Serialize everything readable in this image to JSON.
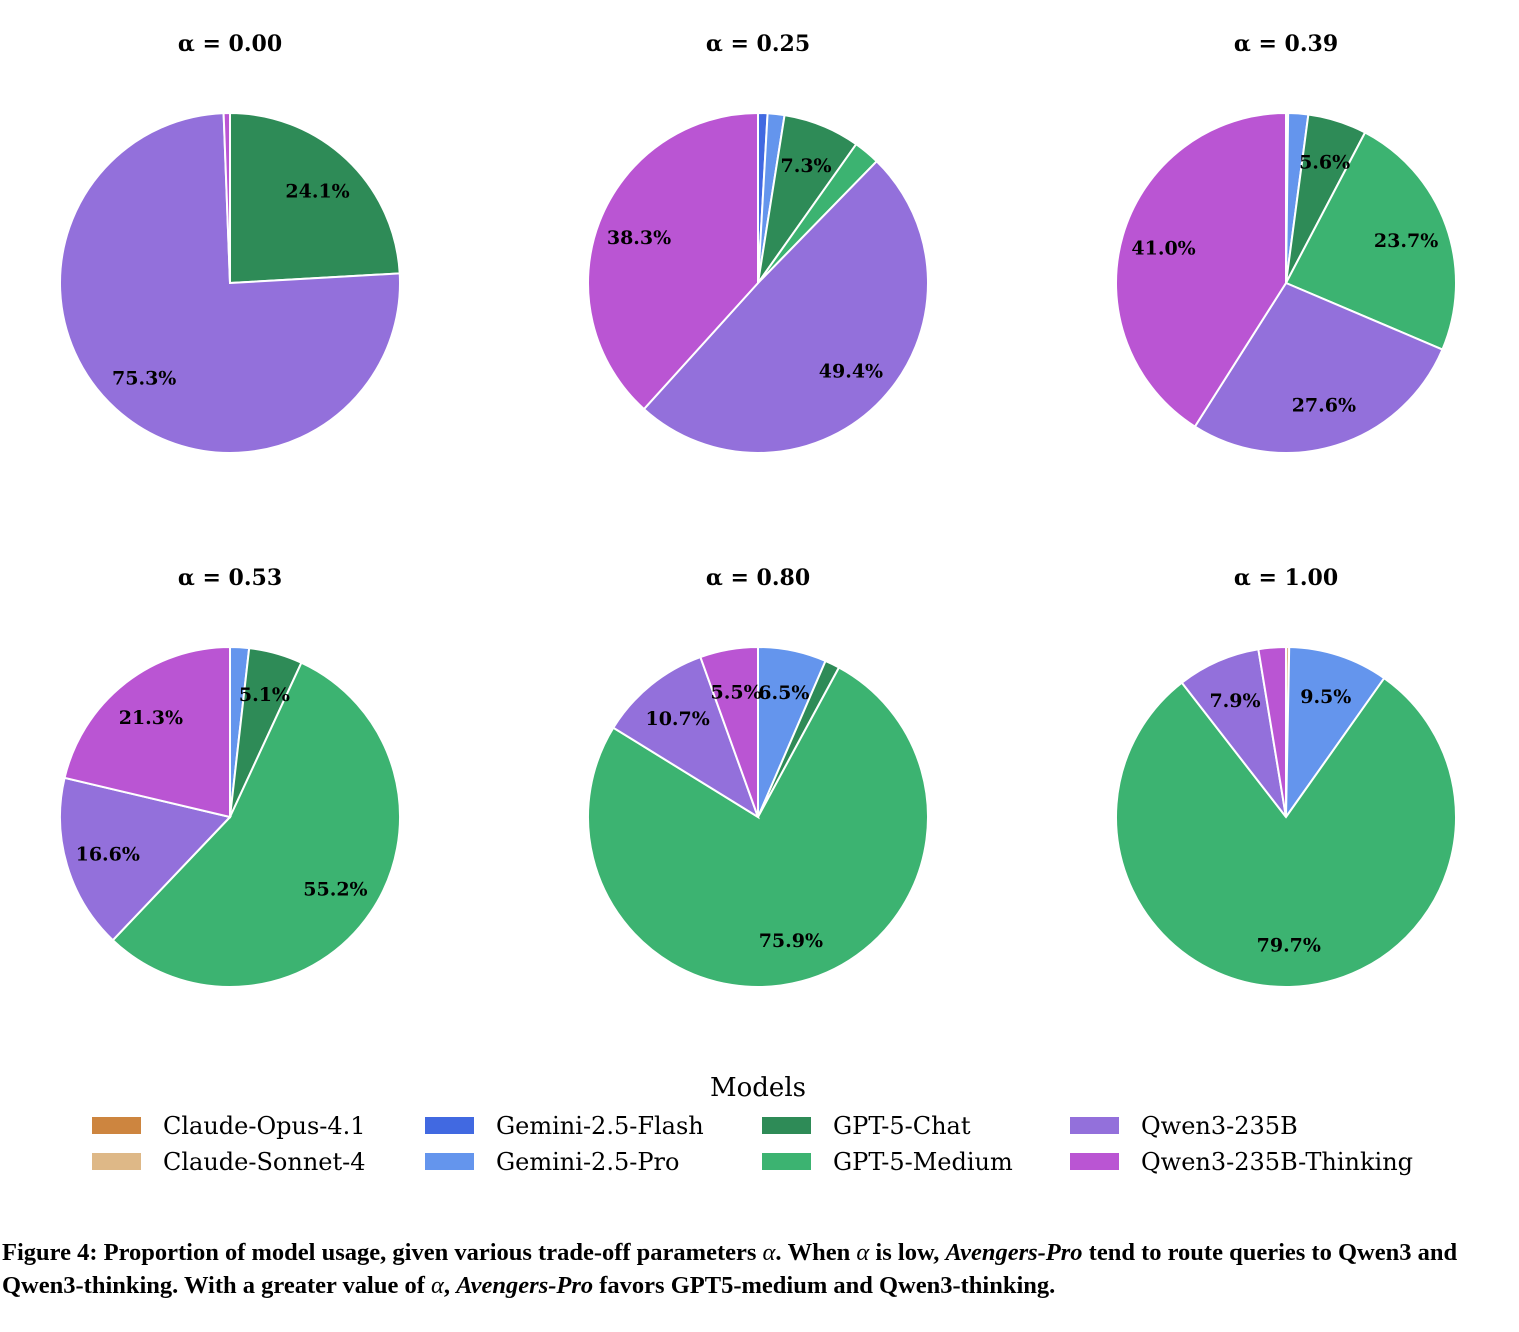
{
  "chart_data": {
    "type": "pie",
    "legend_title": "Models",
    "legend_placement": "bottom-center",
    "models": [
      {
        "name": "Claude-Opus-4.1",
        "color": "#CD853F"
      },
      {
        "name": "Claude-Sonnet-4",
        "color": "#DEB887"
      },
      {
        "name": "Gemini-2.5-Flash",
        "color": "#4169E1"
      },
      {
        "name": "Gemini-2.5-Pro",
        "color": "#6495ED"
      },
      {
        "name": "GPT-5-Chat",
        "color": "#2E8B57"
      },
      {
        "name": "GPT-5-Medium",
        "color": "#3CB371"
      },
      {
        "name": "Qwen3-235B",
        "color": "#9370DB"
      },
      {
        "name": "Qwen3-235B-Thinking",
        "color": "#BA55D3"
      }
    ],
    "pies": [
      {
        "title": "α = 0.00",
        "slices": [
          {
            "model": "GPT-5-Chat",
            "value": 24.1,
            "label": "24.1%"
          },
          {
            "model": "Qwen3-235B",
            "value": 75.3,
            "label": "75.3%"
          },
          {
            "model": "Qwen3-235B-Thinking",
            "value": 0.6,
            "label": ""
          }
        ]
      },
      {
        "title": "α = 0.25",
        "slices": [
          {
            "model": "Gemini-2.5-Flash",
            "value": 0.9,
            "label": ""
          },
          {
            "model": "Gemini-2.5-Pro",
            "value": 1.6,
            "label": ""
          },
          {
            "model": "GPT-5-Chat",
            "value": 7.3,
            "label": "7.3%"
          },
          {
            "model": "GPT-5-Medium",
            "value": 2.5,
            "label": ""
          },
          {
            "model": "Qwen3-235B",
            "value": 49.4,
            "label": "49.4%"
          },
          {
            "model": "Qwen3-235B-Thinking",
            "value": 38.3,
            "label": "38.3%"
          }
        ]
      },
      {
        "title": "α = 0.39",
        "slices": [
          {
            "model": "Gemini-2.5-Flash",
            "value": 0.2,
            "label": ""
          },
          {
            "model": "Gemini-2.5-Pro",
            "value": 1.9,
            "label": ""
          },
          {
            "model": "GPT-5-Chat",
            "value": 5.6,
            "label": "5.6%"
          },
          {
            "model": "GPT-5-Medium",
            "value": 23.7,
            "label": "23.7%"
          },
          {
            "model": "Qwen3-235B",
            "value": 27.6,
            "label": "27.6%"
          },
          {
            "model": "Qwen3-235B-Thinking",
            "value": 41.0,
            "label": "41.0%"
          }
        ]
      },
      {
        "title": "α = 0.53",
        "slices": [
          {
            "model": "Gemini-2.5-Pro",
            "value": 1.8,
            "label": ""
          },
          {
            "model": "GPT-5-Chat",
            "value": 5.1,
            "label": "5.1%"
          },
          {
            "model": "GPT-5-Medium",
            "value": 55.2,
            "label": "55.2%"
          },
          {
            "model": "Qwen3-235B",
            "value": 16.6,
            "label": "16.6%"
          },
          {
            "model": "Qwen3-235B-Thinking",
            "value": 21.3,
            "label": "21.3%"
          }
        ]
      },
      {
        "title": "α = 0.80",
        "slices": [
          {
            "model": "Gemini-2.5-Pro",
            "value": 6.5,
            "label": "6.5%"
          },
          {
            "model": "GPT-5-Chat",
            "value": 1.4,
            "label": ""
          },
          {
            "model": "GPT-5-Medium",
            "value": 75.9,
            "label": "75.9%"
          },
          {
            "model": "Qwen3-235B",
            "value": 10.7,
            "label": "10.7%"
          },
          {
            "model": "Qwen3-235B-Thinking",
            "value": 5.5,
            "label": "5.5%"
          }
        ]
      },
      {
        "title": "α = 1.00",
        "slices": [
          {
            "model": "Claude-Sonnet-4",
            "value": 0.3,
            "label": ""
          },
          {
            "model": "Gemini-2.5-Pro",
            "value": 9.5,
            "label": "9.5%"
          },
          {
            "model": "GPT-5-Medium",
            "value": 79.7,
            "label": "79.7%"
          },
          {
            "model": "Qwen3-235B",
            "value": 7.9,
            "label": "7.9%"
          },
          {
            "model": "Qwen3-235B-Thinking",
            "value": 2.6,
            "label": ""
          }
        ]
      }
    ]
  },
  "caption": {
    "prefix": "Figure 4: Proportion of model usage, given various trade-off parameters ",
    "alpha": "α",
    "part2": ". When ",
    "part3": " is low, ",
    "system": "Avengers-Pro",
    "part4": " tend to route queries to Qwen3 and Qwen3-thinking. With a greater value of ",
    "part5": ", ",
    "part6": " favors GPT5-medium and Qwen3-thinking."
  }
}
